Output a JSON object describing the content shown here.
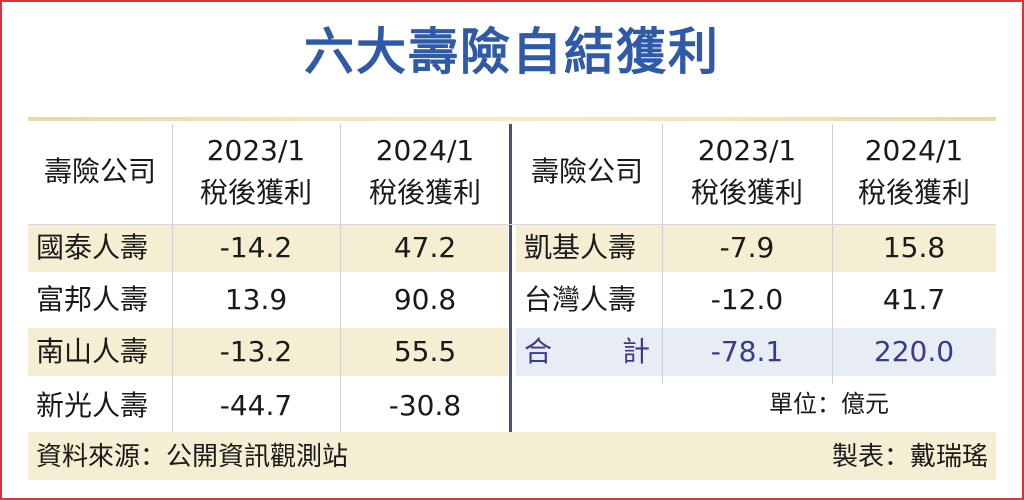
{
  "title": "六大壽險自結獲利",
  "headers": {
    "company": "壽險公司",
    "p2023_line1": "2023/1",
    "p2023_line2": "稅後獲利",
    "p2024_line1": "2024/1",
    "p2024_line2": "稅後獲利"
  },
  "left_rows": [
    {
      "company": "國泰人壽",
      "v2023": "-14.2",
      "v2024": "47.2"
    },
    {
      "company": "富邦人壽",
      "v2023": "13.9",
      "v2024": "90.8"
    },
    {
      "company": "南山人壽",
      "v2023": "-13.2",
      "v2024": "55.5"
    },
    {
      "company": "新光人壽",
      "v2023": "-44.7",
      "v2024": "-30.8"
    }
  ],
  "right_rows": [
    {
      "company": "凱基人壽",
      "v2023": "-7.9",
      "v2024": "15.8"
    },
    {
      "company": "台灣人壽",
      "v2023": "-12.0",
      "v2024": "41.7"
    }
  ],
  "total": {
    "label_a": "合",
    "label_b": "計",
    "v2023": "-78.1",
    "v2024": "220.0"
  },
  "unit": "單位：億元",
  "source": "資料來源：公開資訊觀測站",
  "credit": "製表：戴瑞瑤",
  "colors": {
    "title": "#2e5aa8",
    "frame": "#e0303a",
    "highlight": "#f6eed2",
    "total_text": "#3a3a8a"
  }
}
